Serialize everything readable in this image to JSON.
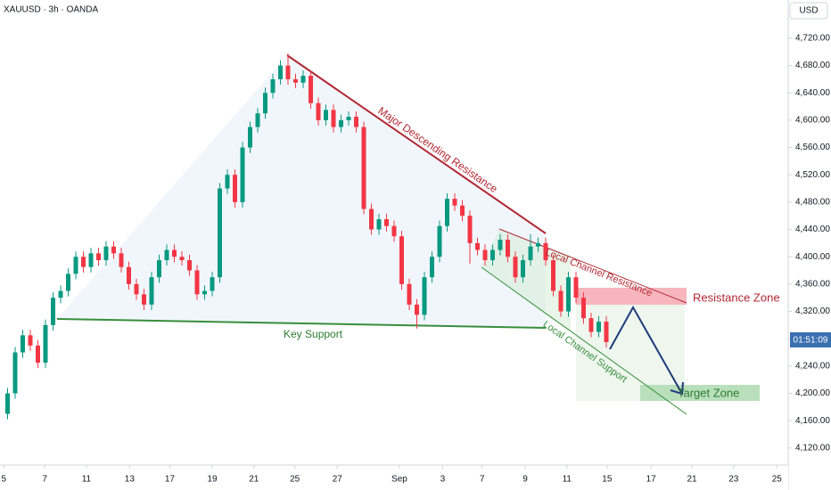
{
  "chart_data": {
    "type": "candlestick",
    "title": "XAUUSD · 3h · OANDA",
    "currency_label": "USD",
    "countdown": "01:51:09",
    "up_color": "#089981",
    "down_color": "#f23645",
    "grid": false,
    "xlim": [
      0,
      104
    ],
    "ylim": [
      4095,
      4776
    ],
    "x": [
      1,
      2,
      3,
      4,
      5,
      6,
      7,
      8,
      9,
      10,
      11,
      12,
      13,
      14,
      15,
      16,
      17,
      18,
      19,
      20,
      21,
      22,
      23,
      24,
      25,
      26,
      27,
      28,
      29,
      30,
      31,
      32,
      33,
      34,
      35,
      36,
      37,
      38,
      39,
      40,
      41,
      42,
      43,
      44,
      45,
      46,
      47,
      48,
      49,
      50,
      51,
      52,
      53,
      54,
      55,
      56,
      57,
      58,
      59,
      60,
      61,
      62,
      63,
      64,
      65,
      66,
      67,
      68,
      69,
      70,
      71,
      72,
      73,
      74,
      75,
      76,
      77,
      78,
      79,
      80
    ],
    "open": [
      4170,
      4200,
      4260,
      4285,
      4270,
      4245,
      4300,
      4340,
      4350,
      4375,
      4400,
      4385,
      4405,
      4395,
      4415,
      4405,
      4385,
      4360,
      4345,
      4330,
      4370,
      4395,
      4410,
      4400,
      4395,
      4380,
      4345,
      4350,
      4370,
      4500,
      4520,
      4480,
      4560,
      4590,
      4610,
      4640,
      4660,
      4680,
      4660,
      4655,
      4665,
      4625,
      4600,
      4615,
      4590,
      4600,
      4605,
      4590,
      4470,
      4440,
      4455,
      4445,
      4430,
      4360,
      4330,
      4315,
      4370,
      4400,
      4445,
      4485,
      4475,
      4460,
      4420,
      4410,
      4395,
      4410,
      4425,
      4400,
      4370,
      4395,
      4415,
      4420,
      4395,
      4350,
      4320,
      4370,
      4340,
      4310,
      4290,
      4305
    ],
    "high": [
      4208,
      4268,
      4293,
      4293,
      4278,
      4308,
      4348,
      4358,
      4383,
      4408,
      4408,
      4413,
      4413,
      4423,
      4423,
      4413,
      4393,
      4368,
      4353,
      4378,
      4403,
      4418,
      4418,
      4408,
      4403,
      4388,
      4358,
      4378,
      4508,
      4528,
      4528,
      4568,
      4598,
      4618,
      4648,
      4668,
      4688,
      4698,
      4668,
      4673,
      4673,
      4633,
      4623,
      4623,
      4608,
      4613,
      4613,
      4598,
      4478,
      4463,
      4463,
      4453,
      4438,
      4368,
      4338,
      4378,
      4408,
      4453,
      4493,
      4493,
      4483,
      4468,
      4428,
      4418,
      4418,
      4433,
      4433,
      4408,
      4403,
      4433,
      4428,
      4428,
      4403,
      4358,
      4378,
      4378,
      4348,
      4318,
      4313,
      4313
    ],
    "low": [
      4162,
      4192,
      4252,
      4262,
      4237,
      4237,
      4292,
      4332,
      4342,
      4367,
      4377,
      4377,
      4387,
      4387,
      4397,
      4377,
      4352,
      4337,
      4322,
      4322,
      4362,
      4387,
      4392,
      4387,
      4372,
      4337,
      4337,
      4342,
      4362,
      4492,
      4472,
      4472,
      4552,
      4582,
      4602,
      4632,
      4652,
      4652,
      4647,
      4647,
      4617,
      4592,
      4592,
      4582,
      4582,
      4592,
      4582,
      4462,
      4432,
      4432,
      4437,
      4422,
      4352,
      4322,
      4295,
      4307,
      4362,
      4392,
      4437,
      4467,
      4452,
      4390,
      4402,
      4387,
      4387,
      4402,
      4392,
      4362,
      4362,
      4387,
      4407,
      4387,
      4342,
      4312,
      4312,
      4332,
      4302,
      4282,
      4282,
      4267
    ],
    "close": [
      4200,
      4260,
      4285,
      4270,
      4245,
      4300,
      4340,
      4350,
      4375,
      4400,
      4385,
      4405,
      4395,
      4415,
      4405,
      4385,
      4360,
      4345,
      4330,
      4370,
      4395,
      4410,
      4400,
      4395,
      4380,
      4345,
      4350,
      4370,
      4500,
      4520,
      4480,
      4560,
      4590,
      4610,
      4640,
      4660,
      4680,
      4660,
      4655,
      4665,
      4625,
      4600,
      4615,
      4590,
      4600,
      4605,
      4590,
      4470,
      4440,
      4455,
      4445,
      4430,
      4360,
      4330,
      4315,
      4370,
      4400,
      4445,
      4485,
      4475,
      4460,
      4420,
      4410,
      4395,
      4410,
      4425,
      4400,
      4370,
      4395,
      4415,
      4420,
      4395,
      4350,
      4320,
      4370,
      4340,
      4310,
      4290,
      4305,
      4275
    ],
    "xticks": [
      {
        "value": 0.5,
        "label": "5"
      },
      {
        "value": 5.9,
        "label": "7"
      },
      {
        "value": 11.4,
        "label": "11"
      },
      {
        "value": 17.1,
        "label": "13"
      },
      {
        "value": 22.4,
        "label": "17"
      },
      {
        "value": 28,
        "label": "19"
      },
      {
        "value": 33.5,
        "label": "21"
      },
      {
        "value": 38.9,
        "label": "25"
      },
      {
        "value": 44.5,
        "label": "27"
      },
      {
        "value": 52.7,
        "label": "Sep"
      },
      {
        "value": 58.4,
        "label": "3"
      },
      {
        "value": 63.6,
        "label": "7"
      },
      {
        "value": 69.3,
        "label": "9"
      },
      {
        "value": 74.8,
        "label": "11"
      },
      {
        "value": 80.1,
        "label": "15"
      },
      {
        "value": 85.9,
        "label": "17"
      },
      {
        "value": 91.3,
        "label": "21"
      },
      {
        "value": 96.8,
        "label": "23"
      },
      {
        "value": 102.5,
        "label": "25"
      }
    ],
    "yticks": [
      {
        "value": 4120,
        "label": "4,120.00"
      },
      {
        "value": 4160,
        "label": "4,160.00"
      },
      {
        "value": 4200,
        "label": "4,200.00"
      },
      {
        "value": 4240,
        "label": "4,240.00"
      },
      {
        "value": 4280,
        "label": "4,280.00"
      },
      {
        "value": 4320,
        "label": "4,320.00"
      },
      {
        "value": 4360,
        "label": "4,360.00"
      },
      {
        "value": 4400,
        "label": "4,400.00"
      },
      {
        "value": 4440,
        "label": "4,440.00"
      },
      {
        "value": 4480,
        "label": "4,480.00"
      },
      {
        "value": 4520,
        "label": "4,520.00"
      },
      {
        "value": 4560,
        "label": "4,560.00"
      },
      {
        "value": 4600,
        "label": "4,600.00"
      },
      {
        "value": 4640,
        "label": "4,640.00"
      },
      {
        "value": 4680,
        "label": "4,680.00"
      },
      {
        "value": 4720,
        "label": "4,720.00"
      }
    ],
    "annotations": {
      "major_resistance": "Major Descending Resistance",
      "local_resistance": "Local Channel Resistance",
      "local_support": "Local Channel Support",
      "key_support": "Key Support",
      "resistance_zone": "Resistance Zone",
      "target_zone": "Target Zone"
    }
  }
}
